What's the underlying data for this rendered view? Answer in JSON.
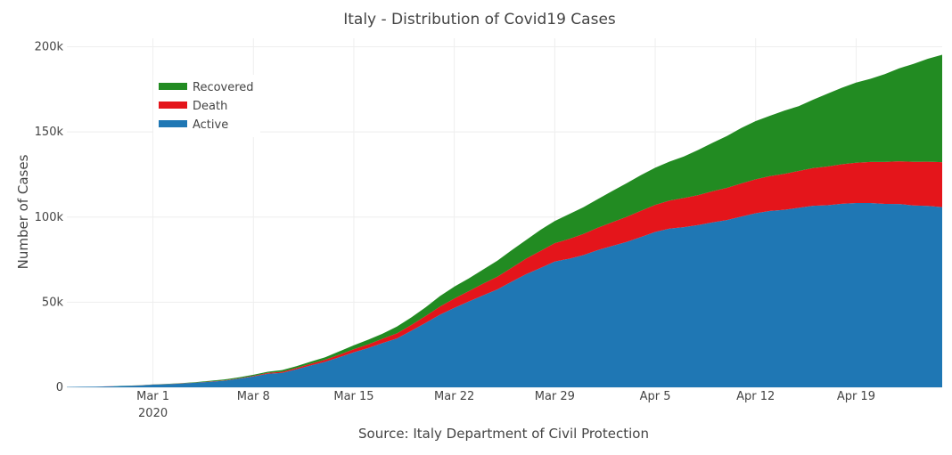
{
  "chart_data": {
    "type": "area",
    "stacked": true,
    "title": "Italy - Distribution of Covid19 Cases",
    "xlabel": "Source: Italy Department of Civil Protection",
    "ylabel": "Number of Cases",
    "ylim": [
      0,
      205000
    ],
    "y_ticks": [
      {
        "value": 0,
        "label": "0"
      },
      {
        "value": 50000,
        "label": "50k"
      },
      {
        "value": 100000,
        "label": "100k"
      },
      {
        "value": 150000,
        "label": "150k"
      },
      {
        "value": 200000,
        "label": "200k"
      }
    ],
    "x_ticks": [
      {
        "date": "2020-03-01",
        "label": "Mar 1",
        "sublabel": "2020"
      },
      {
        "date": "2020-03-08",
        "label": "Mar 8"
      },
      {
        "date": "2020-03-15",
        "label": "Mar 15"
      },
      {
        "date": "2020-03-22",
        "label": "Mar 22"
      },
      {
        "date": "2020-03-29",
        "label": "Mar 29"
      },
      {
        "date": "2020-04-05",
        "label": "Apr 5"
      },
      {
        "date": "2020-04-12",
        "label": "Apr 12"
      },
      {
        "date": "2020-04-19",
        "label": "Apr 19"
      }
    ],
    "grid": true,
    "legend_position": "top-left",
    "x": [
      "2020-02-24",
      "2020-02-25",
      "2020-02-26",
      "2020-02-27",
      "2020-02-28",
      "2020-02-29",
      "2020-03-01",
      "2020-03-02",
      "2020-03-03",
      "2020-03-04",
      "2020-03-05",
      "2020-03-06",
      "2020-03-07",
      "2020-03-08",
      "2020-03-09",
      "2020-03-10",
      "2020-03-11",
      "2020-03-12",
      "2020-03-13",
      "2020-03-14",
      "2020-03-15",
      "2020-03-16",
      "2020-03-17",
      "2020-03-18",
      "2020-03-19",
      "2020-03-20",
      "2020-03-21",
      "2020-03-22",
      "2020-03-23",
      "2020-03-24",
      "2020-03-25",
      "2020-03-26",
      "2020-03-27",
      "2020-03-28",
      "2020-03-29",
      "2020-03-30",
      "2020-03-31",
      "2020-04-01",
      "2020-04-02",
      "2020-04-03",
      "2020-04-04",
      "2020-04-05",
      "2020-04-06",
      "2020-04-07",
      "2020-04-08",
      "2020-04-09",
      "2020-04-10",
      "2020-04-11",
      "2020-04-12",
      "2020-04-13",
      "2020-04-14",
      "2020-04-15",
      "2020-04-16",
      "2020-04-17",
      "2020-04-18",
      "2020-04-19",
      "2020-04-20",
      "2020-04-21",
      "2020-04-22",
      "2020-04-23",
      "2020-04-24",
      "2020-04-25"
    ],
    "series": [
      {
        "name": "Active",
        "color": "#1f77b4",
        "values": [
          221,
          311,
          385,
          588,
          821,
          1049,
          1577,
          1835,
          2263,
          2706,
          3296,
          3916,
          5061,
          6387,
          7985,
          8514,
          10590,
          12839,
          14955,
          17750,
          20603,
          23073,
          26062,
          28710,
          33190,
          37860,
          42681,
          46638,
          50418,
          54030,
          57521,
          62013,
          66414,
          70065,
          73880,
          75528,
          77635,
          80572,
          83049,
          85388,
          88274,
          91246,
          93187,
          94067,
          95262,
          96877,
          98273,
          100269,
          102253,
          103616,
          104291,
          105418,
          106607,
          106962,
          107771,
          108257,
          108237,
          107709,
          107699,
          106848,
          106527,
          105847
        ]
      },
      {
        "name": "Death",
        "color": "#e4151b",
        "values": [
          7,
          10,
          12,
          17,
          21,
          29,
          34,
          52,
          79,
          107,
          148,
          197,
          233,
          366,
          463,
          631,
          827,
          1016,
          1266,
          1441,
          1809,
          2158,
          2503,
          2978,
          3405,
          4032,
          4825,
          5476,
          6077,
          6820,
          7503,
          8165,
          9134,
          10023,
          10779,
          11591,
          12428,
          13155,
          13915,
          14681,
          15362,
          15887,
          16523,
          17127,
          17669,
          18279,
          18849,
          19468,
          19899,
          20465,
          21067,
          21645,
          22170,
          22745,
          23227,
          23660,
          24114,
          24648,
          25085,
          25549,
          25969,
          26384
        ]
      },
      {
        "name": "Recovered",
        "color": "#228b22",
        "values": [
          1,
          1,
          3,
          45,
          46,
          50,
          83,
          149,
          160,
          276,
          414,
          523,
          589,
          622,
          724,
          1004,
          1045,
          1258,
          1439,
          1966,
          2335,
          2749,
          2941,
          4025,
          4440,
          5129,
          6072,
          7024,
          7432,
          8326,
          9362,
          10361,
          10950,
          12384,
          13030,
          14620,
          15729,
          16847,
          18278,
          19758,
          20996,
          21815,
          22837,
          24392,
          26491,
          28470,
          30455,
          32534,
          34211,
          35435,
          37130,
          38092,
          40164,
          42727,
          44927,
          47055,
          48877,
          51600,
          54543,
          57576,
          60498,
          63120
        ]
      }
    ]
  }
}
